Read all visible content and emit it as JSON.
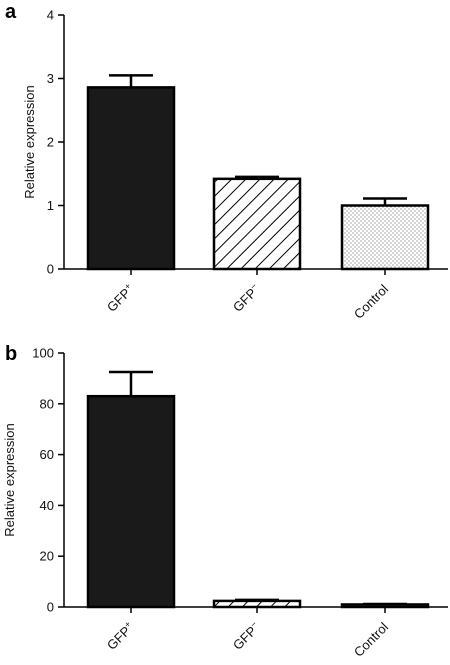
{
  "chart_data": [
    {
      "panel": "a",
      "type": "bar",
      "ylabel": "Relative expression",
      "ylim": [
        0,
        4
      ],
      "yticks": [
        "0",
        "1",
        "2",
        "3",
        "4"
      ],
      "categories": [
        {
          "name": "GFP",
          "sup": "+"
        },
        {
          "name": "GFP",
          "sup": "−"
        },
        {
          "name": "Control",
          "sup": ""
        }
      ],
      "values": [
        2.86,
        1.42,
        1.0
      ],
      "errors": [
        0.19,
        0.03,
        0.11
      ],
      "fills": [
        "solid",
        "hatch",
        "dots"
      ],
      "grid": false
    },
    {
      "panel": "b",
      "type": "bar",
      "ylabel": "Relative expression",
      "ylim": [
        0,
        100
      ],
      "yticks": [
        "0",
        "20",
        "40",
        "60",
        "80",
        "100"
      ],
      "categories": [
        {
          "name": "GFP",
          "sup": "+"
        },
        {
          "name": "GFP",
          "sup": "−"
        },
        {
          "name": "Control",
          "sup": ""
        }
      ],
      "values": [
        83,
        2.4,
        1.0
      ],
      "errors": [
        9.5,
        0.4,
        0.2
      ],
      "fills": [
        "solid",
        "hatch",
        "dots"
      ],
      "grid": false
    }
  ],
  "colors": {
    "bar": "#1a1a1a",
    "axis": "#000000",
    "background": "#ffffff"
  }
}
